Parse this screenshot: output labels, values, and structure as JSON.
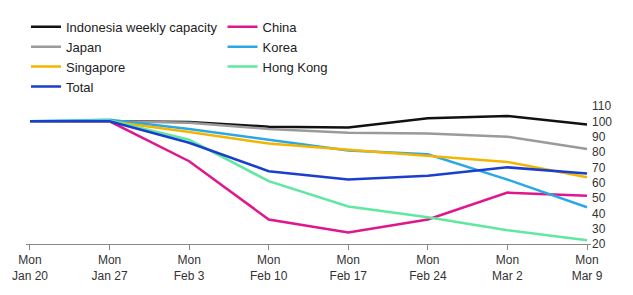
{
  "chart_data": {
    "type": "line",
    "categories": [
      "Mon\nJan 20",
      "Mon\nJan 27",
      "Mon\nFeb 3",
      "Mon\nFeb 10",
      "Mon\nFeb 17",
      "Mon\nFeb 24",
      "Mon\nMar 2",
      "Mon\nMar 9"
    ],
    "series": [
      {
        "name": "Indonesia weekly capacity",
        "color": "#111111",
        "values": [
          100,
          100,
          99.5,
          96.5,
          96,
          102,
          103.5,
          98
        ]
      },
      {
        "name": "China",
        "color": "#e0168c",
        "values": [
          100,
          100,
          74,
          36,
          27.5,
          36,
          53.5,
          51.5
        ]
      },
      {
        "name": "Japan",
        "color": "#9a9a9a",
        "values": [
          100,
          100,
          99,
          95,
          92.5,
          92,
          90,
          82
        ]
      },
      {
        "name": "Korea",
        "color": "#2aa8e6",
        "values": [
          100,
          101,
          95,
          88,
          81,
          78.5,
          62,
          44
        ]
      },
      {
        "name": "Singapore",
        "color": "#f5b400",
        "values": [
          100,
          100,
          93,
          85.5,
          81.5,
          77.5,
          73.5,
          63.5
        ]
      },
      {
        "name": "Hong Kong",
        "color": "#5fe8a0",
        "values": [
          100,
          100.5,
          88,
          61,
          44.5,
          37.5,
          29,
          22.5
        ]
      },
      {
        "name": "Total",
        "color": "#1a3fcc",
        "values": [
          100,
          100,
          86,
          67.5,
          62,
          64.5,
          70,
          66
        ]
      }
    ],
    "ylim": [
      20,
      110
    ],
    "yticks": [
      20,
      30,
      40,
      50,
      60,
      70,
      80,
      90,
      100,
      110
    ],
    "grid": false,
    "legend": "top left"
  }
}
